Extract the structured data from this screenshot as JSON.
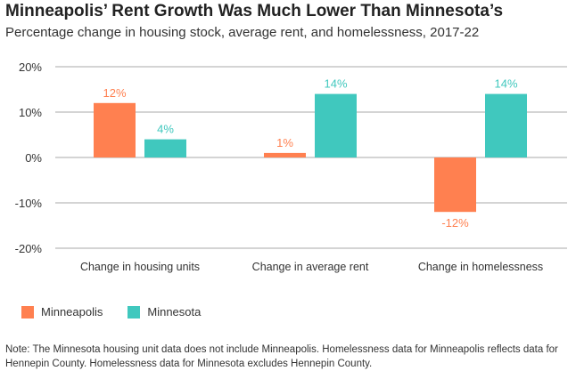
{
  "chart_data": {
    "type": "bar",
    "title": "Minneapolis’ Rent Growth Was Much Lower Than Minnesota’s",
    "subtitle": "Percentage change in housing stock, average rent, and homelessness, 2017-22",
    "categories": [
      "Change in housing units",
      "Change in average rent",
      "Change in homelessness"
    ],
    "series": [
      {
        "name": "Minneapolis",
        "color": "#FF8050",
        "values": [
          12,
          1,
          -12
        ],
        "labels": [
          "12%",
          "1%",
          "-12%"
        ]
      },
      {
        "name": "Minnesota",
        "color": "#40C8BE",
        "values": [
          4,
          14,
          14
        ],
        "labels": [
          "4%",
          "14%",
          "14%"
        ]
      }
    ],
    "yticks": [
      20,
      10,
      0,
      -10,
      -20
    ],
    "ytick_labels": [
      "20%",
      "10%",
      "0%",
      "-10%",
      "-20%"
    ],
    "ylim": [
      -20,
      20
    ],
    "grid": true,
    "legend": "bottom-left",
    "note": "Note: The Minnesota housing unit data does not include Minneapolis. Homelessness data for Minneapolis reflects data for Hennepin County. Homelessness data for Minnesota excludes Hennepin County."
  }
}
